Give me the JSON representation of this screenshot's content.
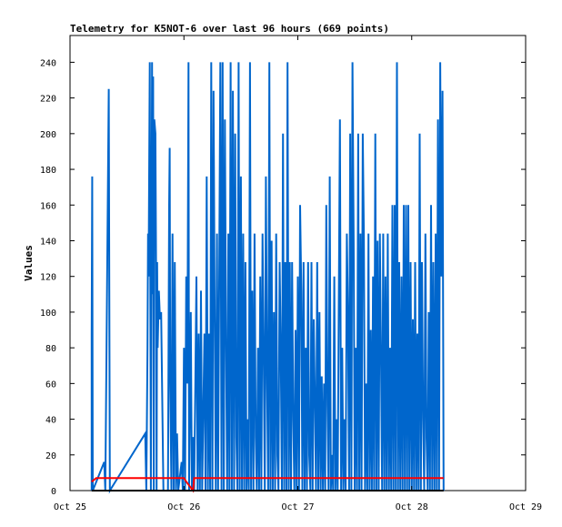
{
  "chart_data": {
    "type": "line",
    "title": "Telemetry for K5NOT-6 over last 96 hours (669 points)",
    "xlabel": "",
    "ylabel": "Values",
    "x_axis": {
      "min": "Oct 25",
      "max": "Oct 29",
      "range_days": [
        0,
        4
      ],
      "ticks": [
        {
          "label": "Oct 25",
          "day": 0
        },
        {
          "label": "Oct 26",
          "day": 1
        },
        {
          "label": "Oct 27",
          "day": 2
        },
        {
          "label": "Oct 28",
          "day": 3
        },
        {
          "label": "Oct 29",
          "day": 4
        }
      ]
    },
    "ylim": [
      0,
      255
    ],
    "y_ticks": [
      0,
      20,
      40,
      60,
      80,
      100,
      120,
      140,
      160,
      180,
      200,
      220,
      240
    ],
    "grid": false,
    "colors": {
      "series_blue": "#0066cc",
      "series_red": "#ff0000",
      "series_black": "#000000",
      "axis": "#000000"
    },
    "series": [
      {
        "color": "#0066cc",
        "points": [
          [
            0.19,
            0
          ],
          [
            0.19,
            88
          ],
          [
            0.195,
            176
          ],
          [
            0.2,
            0
          ],
          [
            0.3,
            16
          ],
          [
            0.31,
            0
          ],
          [
            0.34,
            225
          ],
          [
            0.345,
            112
          ],
          [
            0.35,
            0
          ],
          [
            0.66,
            32
          ],
          [
            0.67,
            0
          ],
          [
            0.68,
            80
          ],
          [
            0.685,
            144
          ],
          [
            0.69,
            120
          ],
          [
            0.7,
            240
          ],
          [
            0.71,
            0
          ],
          [
            0.72,
            240
          ],
          [
            0.725,
            110
          ],
          [
            0.73,
            232
          ],
          [
            0.735,
            0
          ],
          [
            0.74,
            208
          ],
          [
            0.75,
            200
          ],
          [
            0.755,
            128
          ],
          [
            0.76,
            0
          ],
          [
            0.765,
            128
          ],
          [
            0.77,
            80
          ],
          [
            0.78,
            112
          ],
          [
            0.79,
            96
          ],
          [
            0.8,
            100
          ],
          [
            0.82,
            0
          ],
          [
            0.86,
            0
          ],
          [
            0.87,
            160
          ],
          [
            0.875,
            192
          ],
          [
            0.88,
            60
          ],
          [
            0.89,
            0
          ],
          [
            0.9,
            144
          ],
          [
            0.91,
            0
          ],
          [
            0.92,
            128
          ],
          [
            0.93,
            0
          ],
          [
            0.94,
            32
          ],
          [
            0.95,
            0
          ],
          [
            0.98,
            16
          ],
          [
            0.99,
            0
          ],
          [
            1.0,
            80
          ],
          [
            1.01,
            0
          ],
          [
            1.02,
            120
          ],
          [
            1.03,
            60
          ],
          [
            1.04,
            240
          ],
          [
            1.045,
            0
          ],
          [
            1.06,
            100
          ],
          [
            1.07,
            0
          ],
          [
            1.08,
            30
          ],
          [
            1.09,
            0
          ],
          [
            1.1,
            60
          ],
          [
            1.11,
            120
          ],
          [
            1.12,
            0
          ],
          [
            1.13,
            88
          ],
          [
            1.14,
            0
          ],
          [
            1.15,
            112
          ],
          [
            1.16,
            0
          ],
          [
            1.18,
            88
          ],
          [
            1.19,
            0
          ],
          [
            1.2,
            176
          ],
          [
            1.21,
            0
          ],
          [
            1.22,
            88
          ],
          [
            1.23,
            0
          ],
          [
            1.24,
            240
          ],
          [
            1.25,
            0
          ],
          [
            1.26,
            224
          ],
          [
            1.27,
            96
          ],
          [
            1.28,
            0
          ],
          [
            1.29,
            144
          ],
          [
            1.3,
            0
          ],
          [
            1.32,
            240
          ],
          [
            1.33,
            0
          ],
          [
            1.34,
            240
          ],
          [
            1.35,
            0
          ],
          [
            1.36,
            208
          ],
          [
            1.37,
            80
          ],
          [
            1.38,
            0
          ],
          [
            1.39,
            144
          ],
          [
            1.4,
            0
          ],
          [
            1.41,
            240
          ],
          [
            1.42,
            0
          ],
          [
            1.43,
            224
          ],
          [
            1.44,
            0
          ],
          [
            1.45,
            200
          ],
          [
            1.46,
            30
          ],
          [
            1.47,
            0
          ],
          [
            1.48,
            240
          ],
          [
            1.49,
            0
          ],
          [
            1.5,
            176
          ],
          [
            1.51,
            0
          ],
          [
            1.52,
            144
          ],
          [
            1.53,
            0
          ],
          [
            1.54,
            128
          ],
          [
            1.55,
            0
          ],
          [
            1.56,
            40
          ],
          [
            1.57,
            0
          ],
          [
            1.58,
            240
          ],
          [
            1.59,
            0
          ],
          [
            1.6,
            112
          ],
          [
            1.61,
            0
          ],
          [
            1.62,
            144
          ],
          [
            1.63,
            30
          ],
          [
            1.64,
            0
          ],
          [
            1.65,
            80
          ],
          [
            1.66,
            0
          ],
          [
            1.67,
            120
          ],
          [
            1.68,
            0
          ],
          [
            1.69,
            144
          ],
          [
            1.7,
            80
          ],
          [
            1.71,
            0
          ],
          [
            1.72,
            176
          ],
          [
            1.73,
            60
          ],
          [
            1.74,
            0
          ],
          [
            1.75,
            240
          ],
          [
            1.76,
            0
          ],
          [
            1.77,
            140
          ],
          [
            1.78,
            0
          ],
          [
            1.79,
            100
          ],
          [
            1.8,
            0
          ],
          [
            1.81,
            144
          ],
          [
            1.82,
            20
          ],
          [
            1.83,
            0
          ],
          [
            1.84,
            128
          ],
          [
            1.85,
            80
          ],
          [
            1.86,
            0
          ],
          [
            1.87,
            200
          ],
          [
            1.88,
            0
          ],
          [
            1.89,
            128
          ],
          [
            1.9,
            0
          ],
          [
            1.91,
            240
          ],
          [
            1.92,
            0
          ],
          [
            1.93,
            128
          ],
          [
            1.94,
            0
          ],
          [
            1.95,
            128
          ],
          [
            1.96,
            40
          ],
          [
            1.97,
            0
          ],
          [
            1.98,
            90
          ],
          [
            1.99,
            0
          ],
          [
            2.0,
            120
          ],
          [
            2.01,
            0
          ],
          [
            2.02,
            160
          ],
          [
            2.03,
            112
          ],
          [
            2.04,
            0
          ],
          [
            2.05,
            128
          ],
          [
            2.06,
            0
          ],
          [
            2.07,
            80
          ],
          [
            2.08,
            0
          ],
          [
            2.09,
            128
          ],
          [
            2.1,
            20
          ],
          [
            2.11,
            0
          ],
          [
            2.12,
            128
          ],
          [
            2.13,
            0
          ],
          [
            2.14,
            96
          ],
          [
            2.15,
            50
          ],
          [
            2.16,
            0
          ],
          [
            2.17,
            128
          ],
          [
            2.18,
            0
          ],
          [
            2.19,
            100
          ],
          [
            2.2,
            0
          ],
          [
            2.21,
            64
          ],
          [
            2.22,
            0
          ],
          [
            2.23,
            60
          ],
          [
            2.24,
            0
          ],
          [
            2.25,
            160
          ],
          [
            2.26,
            48
          ],
          [
            2.27,
            0
          ],
          [
            2.28,
            176
          ],
          [
            2.29,
            0
          ],
          [
            2.3,
            20
          ],
          [
            2.31,
            0
          ],
          [
            2.32,
            120
          ],
          [
            2.33,
            0
          ],
          [
            2.34,
            40
          ],
          [
            2.35,
            0
          ],
          [
            2.37,
            208
          ],
          [
            2.38,
            0
          ],
          [
            2.39,
            80
          ],
          [
            2.4,
            0
          ],
          [
            2.41,
            40
          ],
          [
            2.42,
            0
          ],
          [
            2.43,
            144
          ],
          [
            2.44,
            100
          ],
          [
            2.45,
            0
          ],
          [
            2.46,
            200
          ],
          [
            2.47,
            0
          ],
          [
            2.48,
            240
          ],
          [
            2.49,
            140
          ],
          [
            2.5,
            0
          ],
          [
            2.51,
            80
          ],
          [
            2.52,
            0
          ],
          [
            2.53,
            200
          ],
          [
            2.54,
            0
          ],
          [
            2.55,
            144
          ],
          [
            2.56,
            0
          ],
          [
            2.57,
            200
          ],
          [
            2.58,
            144
          ],
          [
            2.59,
            0
          ],
          [
            2.6,
            60
          ],
          [
            2.61,
            0
          ],
          [
            2.62,
            144
          ],
          [
            2.63,
            0
          ],
          [
            2.64,
            90
          ],
          [
            2.65,
            0
          ],
          [
            2.66,
            120
          ],
          [
            2.67,
            0
          ],
          [
            2.68,
            200
          ],
          [
            2.69,
            0
          ],
          [
            2.7,
            140
          ],
          [
            2.71,
            0
          ],
          [
            2.72,
            144
          ],
          [
            2.73,
            80
          ],
          [
            2.74,
            0
          ],
          [
            2.75,
            144
          ],
          [
            2.76,
            0
          ],
          [
            2.77,
            120
          ],
          [
            2.78,
            0
          ],
          [
            2.79,
            144
          ],
          [
            2.8,
            0
          ],
          [
            2.81,
            80
          ],
          [
            2.82,
            0
          ],
          [
            2.83,
            160
          ],
          [
            2.84,
            0
          ],
          [
            2.85,
            160
          ],
          [
            2.86,
            0
          ],
          [
            2.87,
            240
          ],
          [
            2.88,
            0
          ],
          [
            2.89,
            128
          ],
          [
            2.9,
            0
          ],
          [
            2.91,
            120
          ],
          [
            2.92,
            0
          ],
          [
            2.93,
            160
          ],
          [
            2.94,
            0
          ],
          [
            2.95,
            160
          ],
          [
            2.96,
            0
          ],
          [
            2.97,
            160
          ],
          [
            2.98,
            0
          ],
          [
            2.99,
            128
          ],
          [
            3.0,
            0
          ],
          [
            3.01,
            96
          ],
          [
            3.02,
            0
          ],
          [
            3.03,
            128
          ],
          [
            3.04,
            0
          ],
          [
            3.05,
            88
          ],
          [
            3.06,
            0
          ],
          [
            3.07,
            200
          ],
          [
            3.08,
            0
          ],
          [
            3.09,
            128
          ],
          [
            3.1,
            40
          ],
          [
            3.11,
            0
          ],
          [
            3.12,
            144
          ],
          [
            3.13,
            30
          ],
          [
            3.14,
            0
          ],
          [
            3.15,
            100
          ],
          [
            3.16,
            0
          ],
          [
            3.17,
            160
          ],
          [
            3.18,
            0
          ],
          [
            3.19,
            128
          ],
          [
            3.2,
            0
          ],
          [
            3.21,
            144
          ],
          [
            3.22,
            0
          ],
          [
            3.23,
            208
          ],
          [
            3.24,
            0
          ],
          [
            3.25,
            240
          ],
          [
            3.26,
            120
          ],
          [
            3.27,
            224
          ],
          [
            3.28,
            0
          ]
        ]
      },
      {
        "color": "#ff0000",
        "points": [
          [
            0.19,
            5
          ],
          [
            0.23,
            7
          ],
          [
            0.3,
            7
          ],
          [
            0.5,
            7
          ],
          [
            1.0,
            7
          ],
          [
            1.02,
            5
          ],
          [
            1.08,
            0
          ],
          [
            1.09,
            7
          ],
          [
            1.5,
            7
          ],
          [
            2.0,
            7
          ],
          [
            2.5,
            7
          ],
          [
            3.0,
            7
          ],
          [
            3.28,
            7
          ]
        ]
      },
      {
        "color": "#000000",
        "points": [
          [
            0.19,
            0
          ],
          [
            3.28,
            0
          ]
        ]
      }
    ]
  }
}
